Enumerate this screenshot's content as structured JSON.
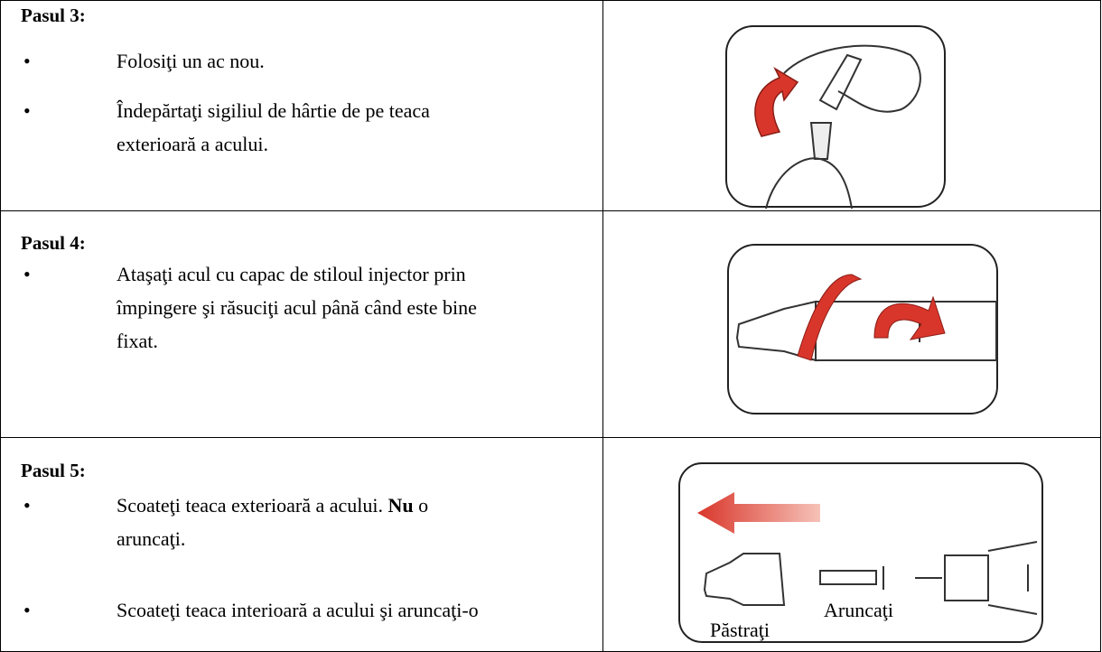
{
  "bullet": "•",
  "table": {
    "rows": [
      {
        "title": "Pasul 3:",
        "bullets": [
          {
            "lines": [
              "Folosiţi un ac nou."
            ]
          },
          {
            "lines": [
              "Îndepărtaţi sigiliul de hârtie de pe teaca",
              "exterioară a acului."
            ]
          }
        ]
      },
      {
        "title": "Pasul 4:",
        "bullets": [
          {
            "lines": [
              "Ataşaţi acul cu capac de stiloul injector prin",
              "împingere şi răsuciţi acul până când este bine",
              "fixat."
            ]
          }
        ]
      },
      {
        "title": "Pasul 5:",
        "bullets": [
          {
            "lines": [
              [
                "Scoateţi teaca exterioară a acului.",
                "Nu",
                "o"
              ],
              "aruncaţi."
            ]
          },
          {
            "lines": [
              "Scoateţi teaca interioară a acului şi aruncaţi-o"
            ]
          }
        ],
        "image_labels": [
          "Păstraţi",
          "Aruncaţi"
        ]
      }
    ]
  }
}
